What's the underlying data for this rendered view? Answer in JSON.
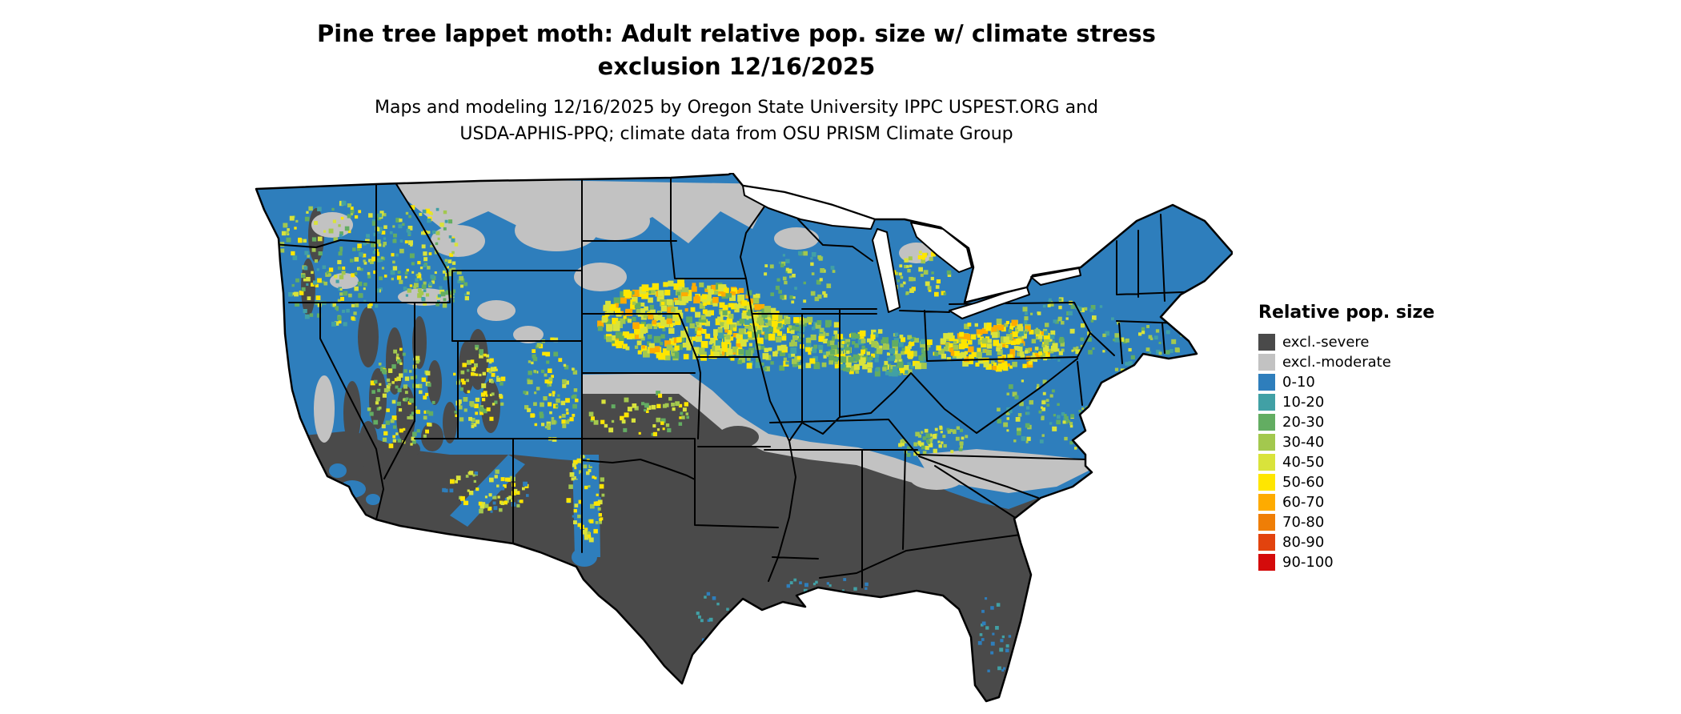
{
  "title": {
    "line1": "Pine tree lappet moth: Adult relative pop. size w/ climate stress",
    "line2": "exclusion 12/16/2025"
  },
  "subtitle": {
    "line1": "Maps and modeling 12/16/2025 by Oregon State University IPPC USPEST.ORG and",
    "line2": "USDA-APHIS-PPQ; climate data from OSU PRISM Climate Group"
  },
  "legend": {
    "title": "Relative pop. size",
    "items": [
      {
        "label": "excl.-severe",
        "color": "#4a4a4a"
      },
      {
        "label": "excl.-moderate",
        "color": "#c2c2c2"
      },
      {
        "label": "0-10",
        "color": "#2e7ebc"
      },
      {
        "label": "10-20",
        "color": "#41a0a5"
      },
      {
        "label": "20-30",
        "color": "#63ad62"
      },
      {
        "label": "30-40",
        "color": "#a3c84e"
      },
      {
        "label": "40-50",
        "color": "#d9e33b"
      },
      {
        "label": "50-60",
        "color": "#ffe600"
      },
      {
        "label": "60-70",
        "color": "#feab00"
      },
      {
        "label": "70-80",
        "color": "#ef7e06"
      },
      {
        "label": "80-90",
        "color": "#e2430e"
      },
      {
        "label": "90-100",
        "color": "#d40b0b"
      }
    ]
  },
  "map": {
    "outline_color": "#000000",
    "background": "#ffffff"
  }
}
